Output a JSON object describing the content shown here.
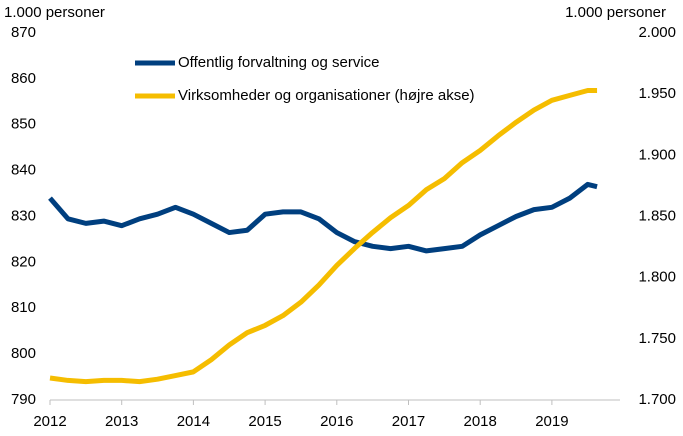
{
  "chart_data": {
    "type": "line",
    "y_label": "1.000 personer",
    "y2_label": "1.000 personer",
    "x": [
      2012,
      2012.25,
      2012.5,
      2012.75,
      2013,
      2013.25,
      2013.5,
      2013.75,
      2014,
      2014.25,
      2014.5,
      2014.75,
      2015,
      2015.25,
      2015.5,
      2015.75,
      2016,
      2016.25,
      2016.5,
      2016.75,
      2017,
      2017.25,
      2017.5,
      2017.75,
      2018,
      2018.25,
      2018.5,
      2018.75,
      2019,
      2019.25,
      2019.5,
      2019.63
    ],
    "series": [
      {
        "name": "Offentlig forvaltning og service",
        "color": "#003f7f",
        "values": [
          834,
          829.5,
          828.5,
          829,
          828,
          829.5,
          830.5,
          832,
          830.5,
          828.5,
          826.5,
          827,
          830.5,
          831,
          831,
          829.5,
          826.5,
          824.5,
          823.5,
          823,
          823.5,
          822.5,
          823,
          823.5,
          826,
          828,
          830,
          831.5,
          832,
          834,
          837,
          836.5
        ]
      },
      {
        "name": "Virksomheder og organisationer (højre akse)",
        "color": "#f5bd00",
        "axis": "y2",
        "values": [
          1718,
          1716,
          1715,
          1716,
          1716,
          1715,
          1717,
          1720,
          1723,
          1733,
          1745,
          1755,
          1761,
          1769,
          1780,
          1794,
          1810,
          1824,
          1837,
          1849,
          1859,
          1872,
          1881,
          1894,
          1904,
          1916,
          1927,
          1937,
          1945,
          1949,
          1953,
          1953
        ]
      }
    ],
    "xlim": [
      2012,
      2019.95
    ],
    "xticks": [
      2012,
      2013,
      2014,
      2015,
      2016,
      2017,
      2018,
      2019
    ],
    "ylim": [
      790,
      870
    ],
    "yticks": [
      790,
      800,
      810,
      820,
      830,
      840,
      850,
      860,
      870
    ],
    "y2lim": [
      1700,
      2000
    ],
    "y2ticks": [
      {
        "value": 1700,
        "label": "1.700"
      },
      {
        "value": 1750,
        "label": "1.750"
      },
      {
        "value": 1800,
        "label": "1.800"
      },
      {
        "value": 1850,
        "label": "1.850"
      },
      {
        "value": 1900,
        "label": "1.900"
      },
      {
        "value": 1950,
        "label": "1.950"
      },
      {
        "value": 2000,
        "label": "2.000"
      }
    ],
    "grid": false,
    "legend": "upper-left"
  }
}
